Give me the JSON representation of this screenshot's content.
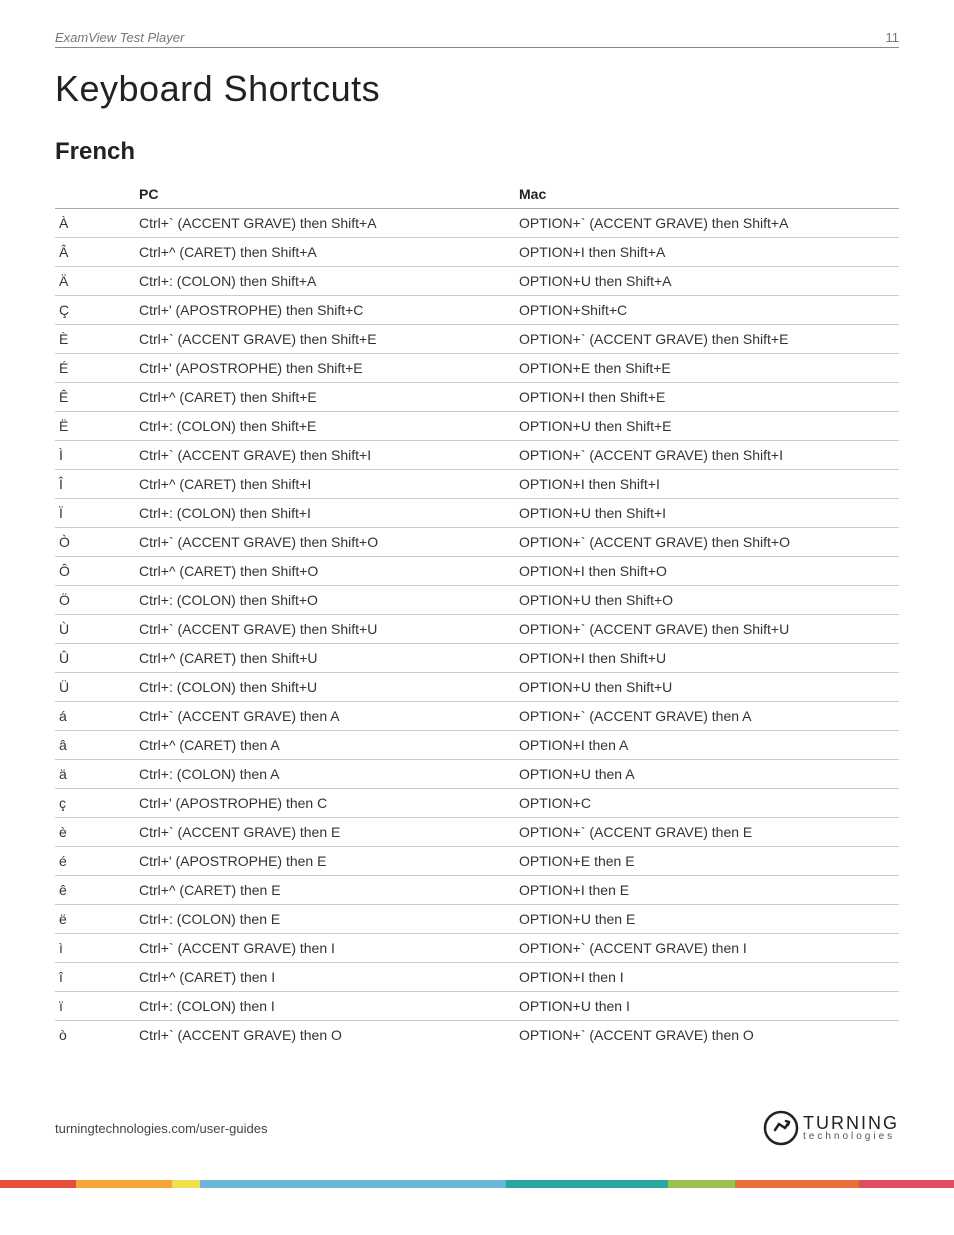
{
  "header": {
    "doc_title": "ExamView Test Player",
    "page_number": "11"
  },
  "page_title": "Keyboard Shortcuts",
  "section_title": "French",
  "table": {
    "columns": [
      "",
      "PC",
      "Mac"
    ],
    "rows": [
      [
        "À",
        "Ctrl+` (ACCENT GRAVE) then Shift+A",
        "OPTION+` (ACCENT GRAVE) then Shift+A"
      ],
      [
        "Â",
        "Ctrl+^ (CARET) then Shift+A",
        "OPTION+I then Shift+A"
      ],
      [
        "Ä",
        "Ctrl+: (COLON) then Shift+A",
        "OPTION+U then Shift+A"
      ],
      [
        "Ç",
        "Ctrl+' (APOSTROPHE) then Shift+C",
        "OPTION+Shift+C"
      ],
      [
        "È",
        "Ctrl+` (ACCENT GRAVE) then Shift+E",
        "OPTION+` (ACCENT GRAVE) then Shift+E"
      ],
      [
        "É",
        "Ctrl+' (APOSTROPHE) then Shift+E",
        "OPTION+E then Shift+E"
      ],
      [
        "Ê",
        "Ctrl+^ (CARET) then Shift+E",
        "OPTION+I then Shift+E"
      ],
      [
        "Ë",
        "Ctrl+: (COLON) then Shift+E",
        "OPTION+U then Shift+E"
      ],
      [
        "Ì",
        "Ctrl+` (ACCENT GRAVE) then Shift+I",
        "OPTION+` (ACCENT GRAVE) then Shift+I"
      ],
      [
        "Î",
        "Ctrl+^ (CARET) then Shift+I",
        "OPTION+I then Shift+I"
      ],
      [
        "Ï",
        "Ctrl+: (COLON) then Shift+I",
        "OPTION+U then Shift+I"
      ],
      [
        "Ò",
        "Ctrl+` (ACCENT GRAVE) then Shift+O",
        "OPTION+` (ACCENT GRAVE) then Shift+O"
      ],
      [
        "Ô",
        "Ctrl+^ (CARET) then Shift+O",
        "OPTION+I then Shift+O"
      ],
      [
        "Ö",
        "Ctrl+: (COLON) then Shift+O",
        "OPTION+U then Shift+O"
      ],
      [
        "Ù",
        "Ctrl+` (ACCENT GRAVE) then Shift+U",
        "OPTION+` (ACCENT GRAVE) then Shift+U"
      ],
      [
        "Û",
        "Ctrl+^ (CARET) then Shift+U",
        "OPTION+I then Shift+U"
      ],
      [
        "Ü",
        "Ctrl+: (COLON) then Shift+U",
        "OPTION+U then Shift+U"
      ],
      [
        "á",
        "Ctrl+` (ACCENT GRAVE) then A",
        "OPTION+` (ACCENT GRAVE) then A"
      ],
      [
        "â",
        "Ctrl+^ (CARET) then A",
        "OPTION+I then A"
      ],
      [
        "ä",
        "Ctrl+: (COLON) then A",
        "OPTION+U then A"
      ],
      [
        "ç",
        "Ctrl+' (APOSTROPHE) then C",
        "OPTION+C"
      ],
      [
        "è",
        "Ctrl+` (ACCENT GRAVE) then E",
        "OPTION+` (ACCENT GRAVE) then E"
      ],
      [
        "é",
        "Ctrl+' (APOSTROPHE) then E",
        "OPTION+E then E"
      ],
      [
        "ê",
        "Ctrl+^ (CARET) then E",
        "OPTION+I then E"
      ],
      [
        "ë",
        "Ctrl+: (COLON) then E",
        "OPTION+U then E"
      ],
      [
        "ì",
        "Ctrl+` (ACCENT GRAVE) then I",
        "OPTION+` (ACCENT GRAVE) then I"
      ],
      [
        "î",
        "Ctrl+^ (CARET) then I",
        "OPTION+I then I"
      ],
      [
        "ï",
        "Ctrl+: (COLON) then I",
        "OPTION+U then I"
      ],
      [
        "ò",
        "Ctrl+` (ACCENT GRAVE) then O",
        "OPTION+` (ACCENT GRAVE) then O"
      ]
    ]
  },
  "footer": {
    "url": "turningtechnologies.com/user-guides",
    "logo_brand": "TURNING",
    "logo_sub": "technologies"
  },
  "stripe_colors": [
    {
      "c": "#e94e3b",
      "w": 8
    },
    {
      "c": "#f3a73b",
      "w": 10
    },
    {
      "c": "#f0e04c",
      "w": 3
    },
    {
      "c": "#6bb6d6",
      "w": 32
    },
    {
      "c": "#2aa6a0",
      "w": 17
    },
    {
      "c": "#9bc14c",
      "w": 7
    },
    {
      "c": "#e8703d",
      "w": 13
    },
    {
      "c": "#e14d5f",
      "w": 10
    }
  ]
}
